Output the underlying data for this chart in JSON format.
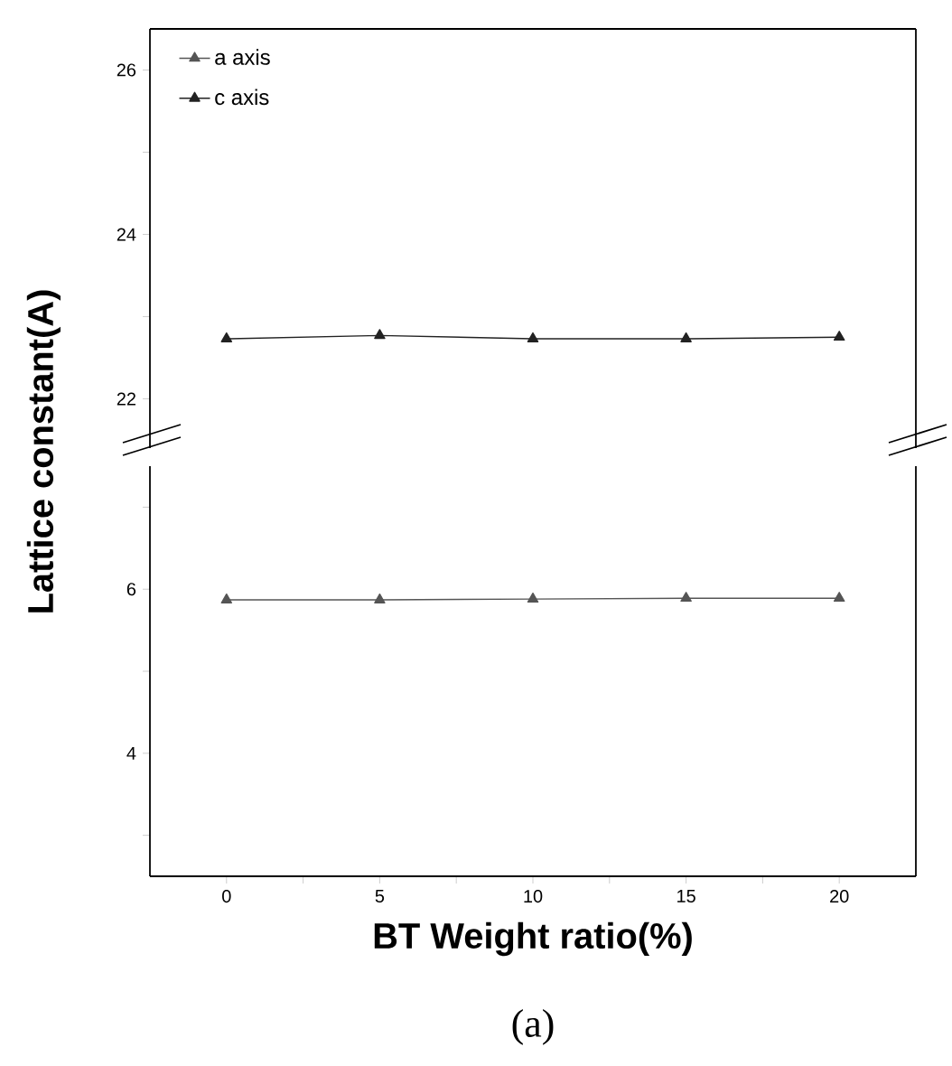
{
  "chart_data": [
    {
      "type": "line",
      "ylabel": "Lattice constant(A)",
      "xlim": [
        -2.5,
        22.5
      ],
      "ylim": [
        21.4,
        26.5
      ],
      "yticks": [
        22,
        {
          "value": 23,
          "label": null
        },
        24,
        {
          "value": 25,
          "label": null
        },
        26
      ],
      "tick_labels": "y",
      "legend": "top left",
      "marker": "triangle",
      "x": [
        0,
        5,
        10,
        15,
        20
      ],
      "series": [
        {
          "name": "a axis",
          "color": "#555555",
          "values": [
            null,
            null,
            null,
            null,
            null
          ]
        },
        {
          "name": "c axis",
          "color": "#222222",
          "values": [
            22.73,
            22.77,
            22.73,
            22.73,
            22.75
          ]
        }
      ]
    },
    {
      "type": "line",
      "xlabel": "BT Weight ratio(%)",
      "annotations": [
        "(a)"
      ],
      "xlim": [
        -2.5,
        22.5
      ],
      "ylim": [
        2.5,
        7.5
      ],
      "xticks": [
        0,
        {
          "value": 2.5,
          "label": null
        },
        5,
        {
          "value": 7.5,
          "label": null
        },
        10,
        {
          "value": 12.5,
          "label": null
        },
        15,
        {
          "value": 17.5,
          "label": null
        },
        20
      ],
      "yticks": [
        {
          "value": 3,
          "label": null
        },
        4,
        {
          "value": 5,
          "label": null
        },
        6,
        {
          "value": 7,
          "label": null
        }
      ],
      "marker": "triangle",
      "x": [
        0,
        5,
        10,
        15,
        20
      ],
      "series": [
        {
          "color": "#555555",
          "values": [
            5.87,
            5.87,
            5.88,
            5.89,
            5.89
          ]
        }
      ]
    }
  ]
}
